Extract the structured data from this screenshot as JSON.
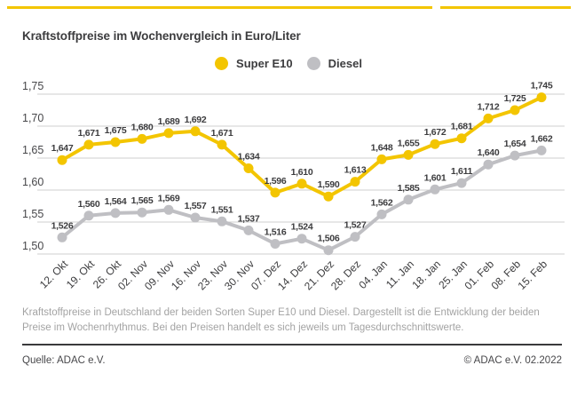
{
  "page": {
    "title": "Kraftstoffpreise im Wochenvergleich in Euro/Liter",
    "description": "Kraftstoffpreise in Deutschland der beiden Sorten Super E10 und Diesel. Dargestellt ist die Entwicklung der beiden Preise im Wochenrhythmus. Bei den Preisen handelt es sich jeweils um Tagesdurchschnittswerte.",
    "source_label": "Quelle: ADAC e.V.",
    "copyright_label": "© ADAC e.V. 02.2022"
  },
  "colors": {
    "super_e10": "#F3C500",
    "diesel": "#BFBFC3",
    "grid": "#CFCFCF",
    "text_dark": "#3C3C3E",
    "text_axis": "#47474A",
    "text_muted": "#A3A3A3",
    "accent_rule": "#F3C500"
  },
  "legend": {
    "items": [
      {
        "label": "Super E10",
        "color_key": "super_e10"
      },
      {
        "label": "Diesel",
        "color_key": "diesel"
      }
    ]
  },
  "chart_data": {
    "type": "line",
    "title": "Kraftstoffpreise im Wochenvergleich in Euro/Liter",
    "xlabel": "",
    "ylabel": "Euro/Liter",
    "categories": [
      "12. Okt",
      "19. Okt",
      "26. Okt",
      "02. Nov",
      "09. Nov",
      "16. Nov",
      "23. Nov",
      "30. Nov",
      "07. Dez",
      "14. Dez",
      "21. Dez",
      "28. Dez",
      "04. Jan",
      "11. Jan",
      "18. Jan",
      "25. Jan",
      "01. Feb",
      "08. Feb",
      "15. Feb"
    ],
    "series": [
      {
        "name": "Super E10",
        "color": "#F3C500",
        "values": [
          1.647,
          1.671,
          1.675,
          1.68,
          1.689,
          1.692,
          1.671,
          1.634,
          1.596,
          1.61,
          1.59,
          1.613,
          1.648,
          1.655,
          1.672,
          1.681,
          1.712,
          1.725,
          1.745
        ]
      },
      {
        "name": "Diesel",
        "color": "#BFBFC3",
        "values": [
          1.526,
          1.56,
          1.564,
          1.565,
          1.569,
          1.557,
          1.551,
          1.537,
          1.516,
          1.524,
          1.506,
          1.527,
          1.562,
          1.585,
          1.601,
          1.611,
          1.64,
          1.654,
          1.662
        ]
      }
    ],
    "ylim": [
      1.5,
      1.75
    ],
    "yticks": [
      "1,75",
      "1,70",
      "1,65",
      "1,60",
      "1,55",
      "1,50"
    ],
    "ytick_values": [
      1.75,
      1.7,
      1.65,
      1.6,
      1.55,
      1.5
    ],
    "grid": true,
    "legend_position": "top-center",
    "value_labels": true,
    "decimal_format": "comma"
  }
}
